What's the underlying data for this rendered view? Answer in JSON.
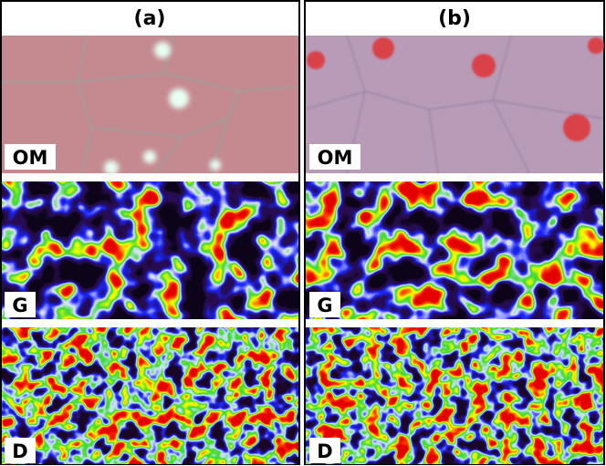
{
  "columns": [
    {
      "title": "(a)",
      "panels": [
        {
          "label": "OM"
        },
        {
          "label": "G"
        },
        {
          "label": "D"
        }
      ]
    },
    {
      "title": "(b)",
      "panels": [
        {
          "label": "OM"
        },
        {
          "label": "G"
        },
        {
          "label": "D"
        }
      ]
    }
  ]
}
